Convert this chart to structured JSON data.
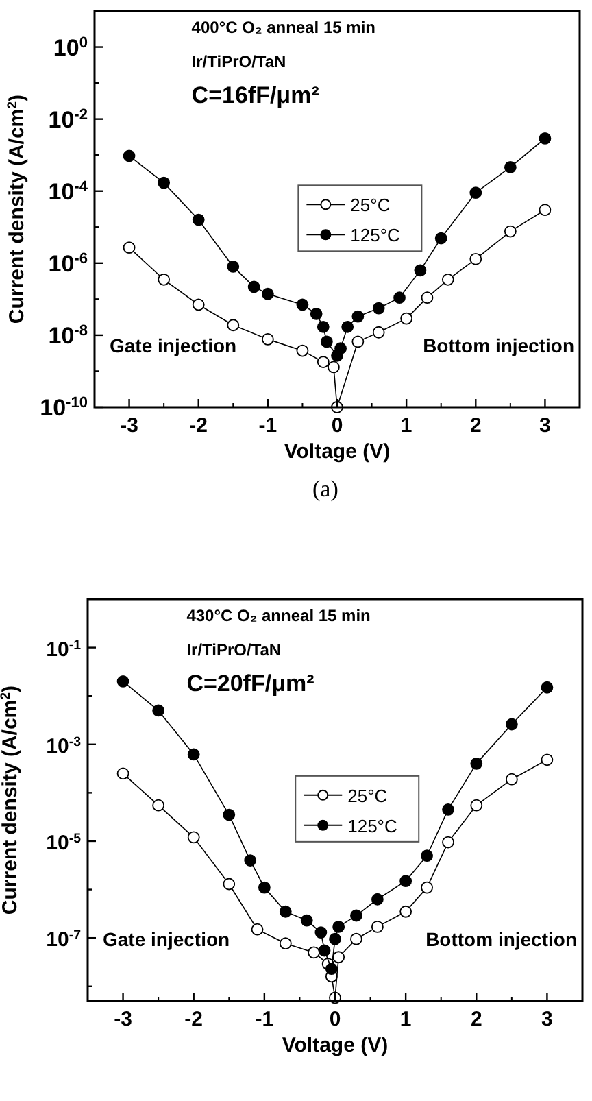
{
  "chart_data": [
    {
      "type": "line",
      "log": "y",
      "xlabel": "Voltage (V)",
      "ylabel": "Current density (A/cm$^{2}$)",
      "marker": "circle",
      "line_style": "solid",
      "legend": "center",
      "grid": false,
      "xlim": [
        -3.5,
        3.5
      ],
      "xticks": [
        -3,
        -2,
        -1,
        0,
        1,
        2,
        3
      ],
      "ylim": [
        1e-10,
        10
      ],
      "yticks": [
        {
          "value": 1e-10,
          "label": "10$^{-10}$"
        },
        {
          "value": 1e-09,
          "label": null
        },
        {
          "value": 1e-08,
          "label": "10$^{-8}$"
        },
        {
          "value": 1e-07,
          "label": null
        },
        {
          "value": 1e-06,
          "label": "10$^{-6}$"
        },
        {
          "value": 1e-05,
          "label": null
        },
        {
          "value": 0.0001,
          "label": "10$^{-4}$"
        },
        {
          "value": 0.001,
          "label": null
        },
        {
          "value": 0.01,
          "label": "10$^{-2}$"
        },
        {
          "value": 0.1,
          "label": null
        },
        {
          "value": 1,
          "label": "10$^{0}$"
        }
      ],
      "annotations": [
        "400°C O₂ anneal  15 min",
        "Ir/TiPrO/TaN",
        "C=16fF/μm²",
        "Gate injection",
        "Bottom injection",
        "(a)"
      ],
      "series": [
        {
          "name": "25°C",
          "color": "#000000",
          "x": [
            -3,
            -2.5,
            -2,
            -1.5,
            -1,
            -0.5,
            -0.2,
            -0.05,
            0,
            0.05,
            0.3,
            0.6,
            1,
            1.3,
            1.6,
            2,
            2.5,
            3
          ],
          "values": [
            2.7e-06,
            3.5e-07,
            7e-08,
            1.9e-08,
            7.7e-09,
            3.7e-09,
            1.8e-09,
            1.3e-09,
            1e-10,
            null,
            6.6e-09,
            1.2e-08,
            2.9e-08,
            1.1e-07,
            3.5e-07,
            1.3e-06,
            7.6e-06,
            3e-05
          ]
        },
        {
          "name": "125°C",
          "color": "#000000",
          "x": [
            -3,
            -2.5,
            -2,
            -1.5,
            -1.2,
            -1,
            -0.5,
            -0.3,
            -0.2,
            -0.15,
            -0.05,
            0,
            0.05,
            0.15,
            0.3,
            0.6,
            0.9,
            1.2,
            1.5,
            2,
            2.5,
            3
          ],
          "values": [
            0.00095,
            0.00017,
            1.6e-05,
            8e-07,
            2.2e-07,
            1.4e-07,
            7e-08,
            3.9e-08,
            1.7e-08,
            6.6e-09,
            null,
            2.7e-09,
            4.3e-09,
            1.7e-08,
            3.3e-08,
            5.6e-08,
            1.1e-07,
            6.3e-07,
            4.9e-06,
            9e-05,
            0.00046,
            0.0029
          ]
        }
      ]
    },
    {
      "type": "line",
      "log": "y",
      "xlabel": "Voltage (V)",
      "ylabel": "Current density (A/cm$^{2}$)",
      "marker": "circle",
      "line_style": "solid",
      "legend": "center",
      "grid": false,
      "xlim": [
        -3.5,
        3.5
      ],
      "xticks": [
        -3,
        -2,
        -1,
        0,
        1,
        2,
        3
      ],
      "ylim": [
        5e-09,
        1
      ],
      "yticks": [
        {
          "value": 1e-08,
          "label": null
        },
        {
          "value": 1e-07,
          "label": "10$^{-7}$"
        },
        {
          "value": 1e-06,
          "label": null
        },
        {
          "value": 1e-05,
          "label": "10$^{-5}$"
        },
        {
          "value": 0.0001,
          "label": null
        },
        {
          "value": 0.001,
          "label": "10$^{-3}$"
        },
        {
          "value": 0.01,
          "label": null
        },
        {
          "value": 0.1,
          "label": "10$^{-1}$"
        }
      ],
      "annotations": [
        "430°C O₂ anneal  15 min",
        "Ir/TiPrO/TaN",
        "C=20fF/μm²",
        "Gate injection",
        "Bottom injection"
      ],
      "series": [
        {
          "name": "25°C",
          "color": "#000000",
          "x": [
            -3,
            -2.5,
            -2,
            -1.5,
            -1.1,
            -0.7,
            -0.3,
            -0.1,
            -0.05,
            0,
            0.05,
            0.3,
            0.6,
            1,
            1.3,
            1.6,
            2,
            2.5,
            3
          ],
          "values": [
            0.00025,
            5.5e-05,
            1.2e-05,
            1.3e-06,
            1.5e-07,
            7.7e-08,
            5e-08,
            2.9e-08,
            1.6e-08,
            5.8e-09,
            4e-08,
            9.5e-08,
            1.7e-07,
            3.5e-07,
            1.1e-06,
            9.5e-06,
            5.5e-05,
            0.00019,
            0.00048
          ]
        },
        {
          "name": "125°C",
          "color": "#000000",
          "x": [
            -3,
            -2.5,
            -2,
            -1.5,
            -1.2,
            -1,
            -0.7,
            -0.4,
            -0.2,
            -0.15,
            -0.05,
            0,
            0.05,
            0.3,
            0.6,
            1,
            1.3,
            1.6,
            2,
            2.5,
            3
          ],
          "values": [
            0.02,
            0.005,
            0.00062,
            3.5e-05,
            4e-06,
            1.1e-06,
            3.5e-07,
            2.3e-07,
            1.3e-07,
            5.5e-08,
            2.3e-08,
            9.5e-08,
            1.7e-07,
            2.9e-07,
            6.3e-07,
            1.5e-06,
            5e-06,
            4.5e-05,
            0.0004,
            0.0026,
            0.015
          ]
        }
      ]
    }
  ]
}
